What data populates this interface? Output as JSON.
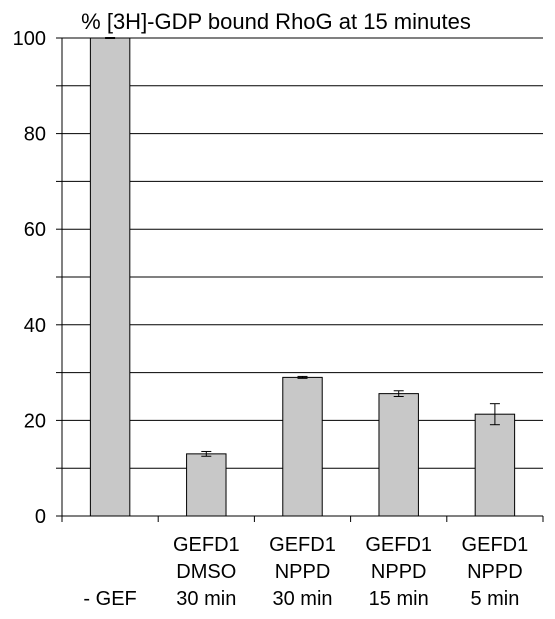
{
  "chart_data": {
    "type": "bar",
    "title": "% [3H]-GDP bound RhoG at 15 minutes",
    "xlabel": "",
    "ylabel": "",
    "ylim": [
      0,
      100
    ],
    "yticks": [
      0,
      20,
      40,
      60,
      80,
      100
    ],
    "grid": true,
    "legend": "none",
    "categories": [
      [
        "",
        "",
        "- GEF"
      ],
      [
        "GEFD1",
        "DMSO",
        "30 min"
      ],
      [
        "GEFD1",
        "NPPD",
        "30 min"
      ],
      [
        "GEFD1",
        "NPPD",
        "15 min"
      ],
      [
        "GEFD1",
        "NPPD",
        "5 min"
      ]
    ],
    "values": [
      100,
      13,
      29,
      25.6,
      21.3
    ],
    "errors": [
      0.1,
      0.5,
      0.2,
      0.6,
      2.2
    ],
    "bar_color": "#c8c8c8"
  }
}
